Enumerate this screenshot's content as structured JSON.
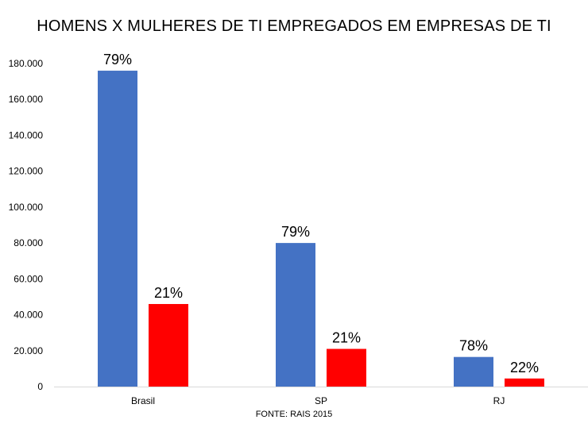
{
  "chart_data": {
    "type": "bar",
    "title": "HOMENS X MULHERES DE TI EMPREGADOS EM EMPRESAS DE TI",
    "source": "FONTE: RAIS 2015",
    "categories": [
      "Brasil",
      "SP",
      "RJ"
    ],
    "series": [
      {
        "color": "#4472C4",
        "values": [
          176000,
          80000,
          16500
        ],
        "labels": [
          "79%",
          "79%",
          "78%"
        ]
      },
      {
        "color": "#FF0000",
        "values": [
          46000,
          21000,
          4500
        ],
        "labels": [
          "21%",
          "21%",
          "22%"
        ]
      }
    ],
    "ylim": [
      0,
      180000
    ],
    "yticks": [
      0,
      20000,
      40000,
      60000,
      80000,
      100000,
      120000,
      140000,
      160000,
      180000
    ],
    "ytick_labels": [
      "0",
      "20.000",
      "40.000",
      "60.000",
      "80.000",
      "100.000",
      "120.000",
      "140.000",
      "160.000",
      "180.000"
    ],
    "grid": false,
    "legend": "none"
  }
}
